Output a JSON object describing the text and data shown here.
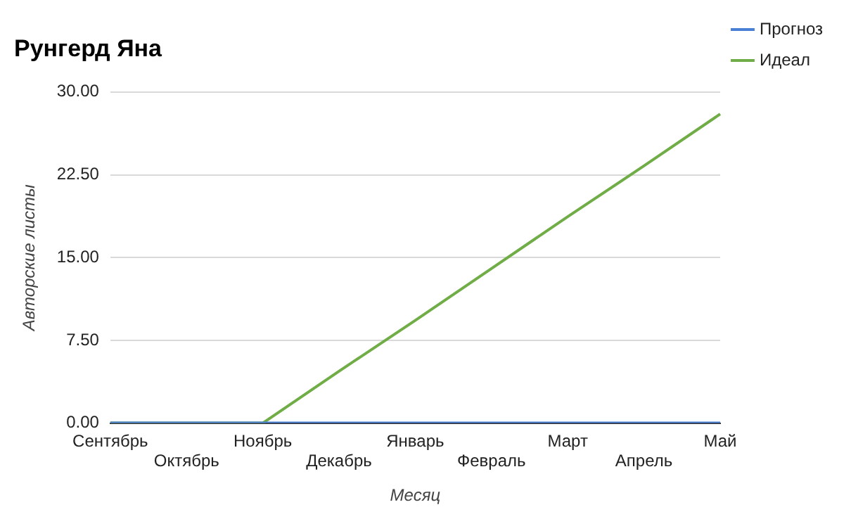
{
  "chart_data": {
    "type": "line",
    "title": "Рунгерд Яна",
    "xlabel": "Месяц",
    "ylabel": "Авторские листы",
    "categories": [
      "Сентябрь",
      "Октябрь",
      "Ноябрь",
      "Декабрь",
      "Январь",
      "Февраль",
      "Март",
      "Апрель",
      "Май"
    ],
    "series": [
      {
        "name": "Прогноз",
        "color": "#4a7fd6",
        "values": [
          0,
          0,
          0,
          0,
          0,
          0,
          0,
          0,
          0
        ]
      },
      {
        "name": "Идеал",
        "color": "#70ad47",
        "values": [
          0,
          0,
          0,
          4.7,
          9.3,
          14,
          18.7,
          23.3,
          28
        ]
      }
    ],
    "ylim": [
      0,
      30
    ],
    "yticks": [
      {
        "value": 0,
        "label": "0.00"
      },
      {
        "value": 7.5,
        "label": "7.50"
      },
      {
        "value": 15,
        "label": "15.00"
      },
      {
        "value": 22.5,
        "label": "22.50"
      },
      {
        "value": 30,
        "label": "30.00"
      }
    ],
    "grid": "y",
    "legend": "top right",
    "marker": "none",
    "line_style": "solid"
  }
}
